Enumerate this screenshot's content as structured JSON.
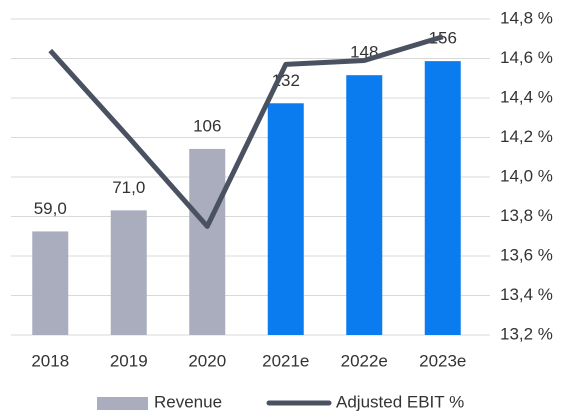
{
  "chart_data": {
    "type": "bar",
    "categories": [
      "2018",
      "2019",
      "2020",
      "2021e",
      "2022e",
      "2023e"
    ],
    "series": [
      {
        "name": "Revenue",
        "color": "#a9adbd",
        "colors": [
          "#a9adbd",
          "#a9adbd",
          "#a9adbd",
          "#0a7cf0",
          "#0a7cf0",
          "#0a7cf0"
        ],
        "values": [
          59,
          71,
          106,
          132,
          148,
          156
        ],
        "value_labels": [
          "59,0",
          "71,0",
          "106",
          "132",
          "148",
          "156"
        ]
      },
      {
        "name": "Adjusted EBIT %",
        "type": "line",
        "axis": "y2",
        "color": "#4a5160",
        "values": [
          14.64,
          14.2,
          13.75,
          14.57,
          14.59,
          14.71
        ]
      }
    ],
    "ylim": [
      0,
      180
    ],
    "y2lim": [
      13.2,
      14.8
    ],
    "y2ticks": [
      {
        "value": 13.2,
        "label": "13,2 %"
      },
      {
        "value": 13.4,
        "label": "13,4 %"
      },
      {
        "value": 13.6,
        "label": "13,6 %"
      },
      {
        "value": 13.8,
        "label": "13,8 %"
      },
      {
        "value": 14.0,
        "label": "14,0 %"
      },
      {
        "value": 14.2,
        "label": "14,2 %"
      },
      {
        "value": 14.4,
        "label": "14,4 %"
      },
      {
        "value": 14.6,
        "label": "14,6 %"
      },
      {
        "value": 14.8,
        "label": "14,8 %"
      }
    ],
    "grid": true,
    "legend": "bottom"
  }
}
